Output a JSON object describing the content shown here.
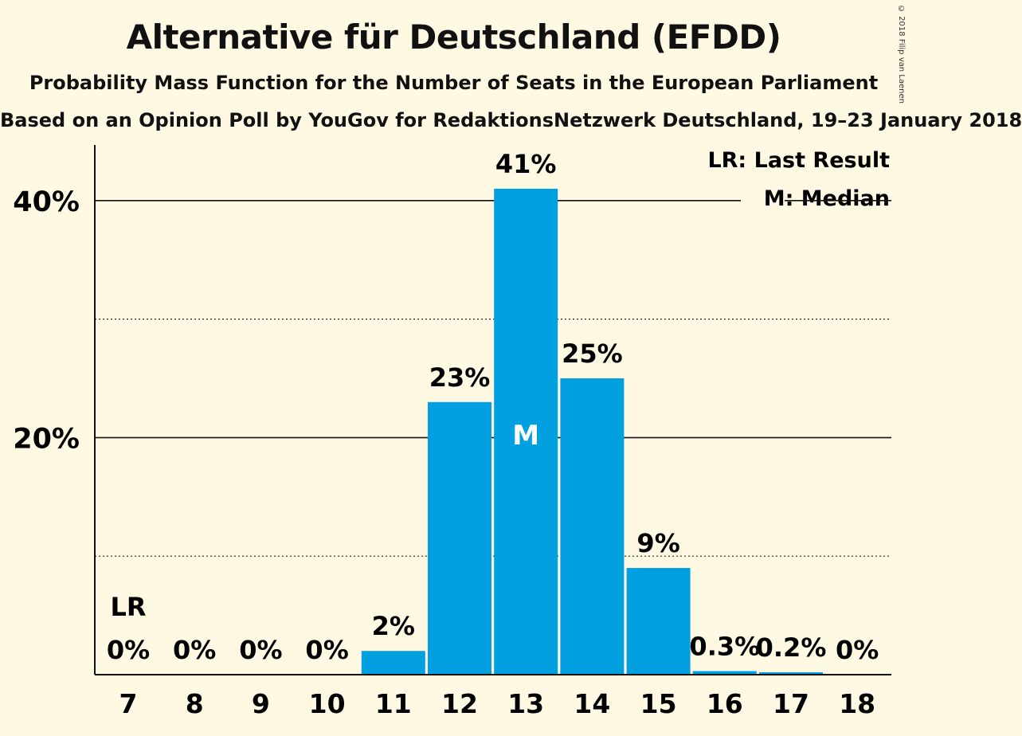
{
  "header": {
    "title": "Alternative für Deutschland (EFDD)",
    "subtitle": "Probability Mass Function for the Number of Seats in the European Parliament",
    "subtitle2": "Based on an Opinion Poll by YouGov for RedaktionsNetzwerk Deutschland, 19–23 January 2018",
    "copyright": "© 2018 Filip van Laenen"
  },
  "legend": {
    "lr": "LR: Last Result",
    "median": "M: Median"
  },
  "colors": {
    "bar": "#009FE0",
    "background": "#FFF9E3"
  },
  "chart_data": {
    "type": "bar",
    "categories": [
      "7",
      "8",
      "9",
      "10",
      "11",
      "12",
      "13",
      "14",
      "15",
      "16",
      "17",
      "18"
    ],
    "values": [
      0,
      0,
      0,
      0,
      2,
      23,
      41,
      25,
      9,
      0.3,
      0.2,
      0
    ],
    "bar_labels": [
      "0%",
      "0%",
      "0%",
      "0%",
      "2%",
      "23%",
      "41%",
      "25%",
      "9%",
      "0.3%",
      "0.2%",
      "0%"
    ],
    "ylim": [
      0,
      45
    ],
    "yticks": [
      {
        "value": 20,
        "label": "20%"
      },
      {
        "value": 40,
        "label": "40%"
      }
    ],
    "minor_gridlines": [
      10,
      30
    ],
    "last_result_category": "7",
    "last_result_label": "LR",
    "median_category": "13",
    "median_label": "M",
    "legend_position": "top-right"
  }
}
